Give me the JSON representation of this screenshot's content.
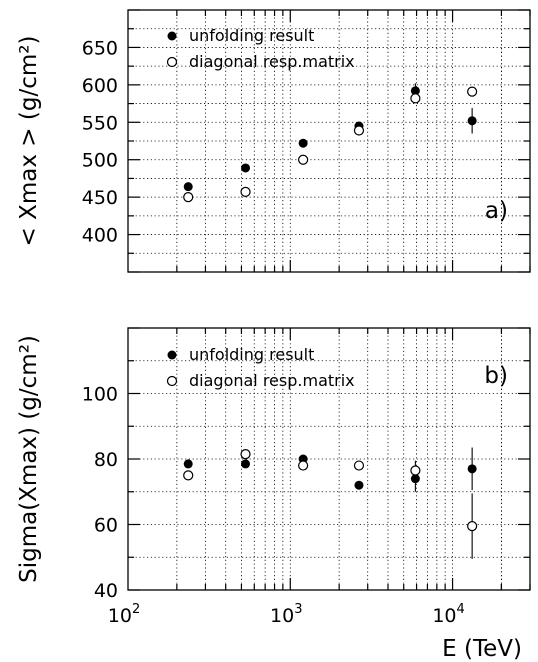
{
  "chart_data": [
    {
      "type": "scatter",
      "panel_label": "a)",
      "ylabel": "< Xmax >  (g/cm²)",
      "xlabel": "",
      "xscale": "log",
      "xlim": [
        100,
        30000
      ],
      "ylim": [
        350,
        700
      ],
      "yticks": [
        400,
        450,
        500,
        550,
        600,
        650
      ],
      "xticks": [
        100,
        1000,
        10000
      ],
      "xtick_labels": [
        [
          "10",
          "2"
        ],
        [
          "10",
          "3"
        ],
        [
          "10",
          "4"
        ]
      ],
      "grid": true,
      "legend_position": "top-left",
      "series": [
        {
          "name": "unfolding result",
          "marker": "filled-circle",
          "x": [
            235,
            530,
            1200,
            2650,
            5900,
            13200
          ],
          "y": [
            464,
            489,
            522,
            545,
            592,
            552
          ],
          "yerr": [
            0,
            0,
            0,
            0,
            10,
            17
          ]
        },
        {
          "name": "diagonal resp.matrix",
          "marker": "open-circle",
          "x": [
            235,
            530,
            1200,
            2650,
            5900,
            13200
          ],
          "y": [
            450,
            457,
            500,
            539,
            582,
            591
          ],
          "yerr": [
            0,
            0,
            0,
            0,
            0,
            0
          ]
        }
      ]
    },
    {
      "type": "scatter",
      "panel_label": "b)",
      "ylabel": "Sigma(Xmax)  (g/cm²)",
      "xlabel": "E (TeV)",
      "xscale": "log",
      "xlim": [
        100,
        30000
      ],
      "ylim": [
        40,
        120
      ],
      "yticks": [
        40,
        60,
        80,
        100
      ],
      "xticks": [
        100,
        1000,
        10000
      ],
      "xtick_labels": [
        [
          "10",
          "2"
        ],
        [
          "10",
          "3"
        ],
        [
          "10",
          "4"
        ]
      ],
      "grid": true,
      "legend_position": "top-left",
      "series": [
        {
          "name": "unfolding result",
          "marker": "filled-circle",
          "x": [
            235,
            530,
            1200,
            2650,
            5900,
            13200
          ],
          "y": [
            78.5,
            78.5,
            80,
            72,
            74,
            77
          ],
          "yerr": [
            0,
            0,
            0,
            0,
            4,
            6.5
          ]
        },
        {
          "name": "diagonal resp.matrix",
          "marker": "open-circle",
          "x": [
            235,
            530,
            1200,
            2650,
            5900,
            13200
          ],
          "y": [
            75,
            81.5,
            78,
            78,
            76.5,
            59.5
          ],
          "yerr": [
            0,
            0,
            0,
            0,
            3,
            10
          ]
        }
      ]
    }
  ]
}
